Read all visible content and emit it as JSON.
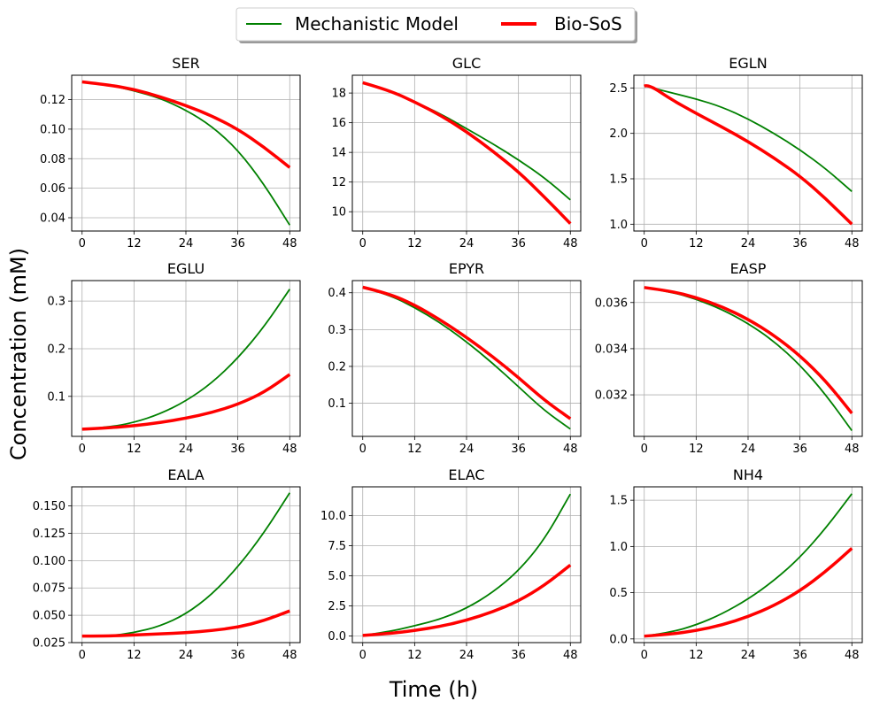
{
  "figure": {
    "xlabel": "Time (h)",
    "ylabel": "Concentration (mM)"
  },
  "legend": {
    "placement": "top-center",
    "entries": [
      {
        "name": "Mechanistic Model",
        "color": "#008000"
      },
      {
        "name": "Bio-SoS",
        "color": "#ff0000"
      }
    ]
  },
  "chart_data": [
    {
      "type": "line",
      "title": "SER",
      "x_ticks": [
        0,
        12,
        24,
        36,
        48
      ],
      "xlim": [
        -2.4,
        50.4
      ],
      "ylim": [
        0.031,
        0.1365
      ],
      "y_ticks": [
        0.04,
        0.06,
        0.08,
        0.1,
        0.12
      ],
      "y_decimals": 2,
      "grid": true,
      "series": [
        {
          "name": "Mechanistic Model",
          "x": [
            0,
            6,
            12,
            18,
            24,
            30,
            36,
            42,
            48
          ],
          "y": [
            0.132,
            0.13,
            0.126,
            0.121,
            0.113,
            0.102,
            0.086,
            0.063,
            0.035
          ]
        },
        {
          "name": "Bio-SoS",
          "x": [
            0,
            6,
            12,
            18,
            24,
            30,
            36,
            42,
            48
          ],
          "y": [
            0.132,
            0.13,
            0.127,
            0.122,
            0.116,
            0.109,
            0.1,
            0.088,
            0.074
          ]
        }
      ]
    },
    {
      "type": "line",
      "title": "GLC",
      "x_ticks": [
        0,
        12,
        24,
        36,
        48
      ],
      "xlim": [
        -2.4,
        50.4
      ],
      "ylim": [
        8.7,
        19.2
      ],
      "y_ticks": [
        10,
        12,
        14,
        16,
        18
      ],
      "y_decimals": 0,
      "grid": true,
      "series": [
        {
          "name": "Mechanistic Model",
          "x": [
            0,
            6,
            12,
            18,
            24,
            30,
            36,
            42,
            48
          ],
          "y": [
            18.7,
            18.2,
            17.4,
            16.6,
            15.6,
            14.6,
            13.5,
            12.3,
            10.8
          ]
        },
        {
          "name": "Bio-SoS",
          "x": [
            0,
            6,
            12,
            18,
            24,
            30,
            36,
            42,
            48
          ],
          "y": [
            18.7,
            18.2,
            17.4,
            16.5,
            15.4,
            14.1,
            12.7,
            11.0,
            9.2
          ]
        }
      ]
    },
    {
      "type": "line",
      "title": "EGLN",
      "x_ticks": [
        0,
        12,
        24,
        36,
        48
      ],
      "xlim": [
        -2.4,
        50.4
      ],
      "ylim": [
        0.925,
        2.64
      ],
      "y_ticks": [
        1.0,
        1.5,
        2.0,
        2.5
      ],
      "y_decimals": 1,
      "grid": true,
      "series": [
        {
          "name": "Mechanistic Model",
          "x": [
            0,
            1,
            6,
            12,
            18,
            24,
            30,
            36,
            42,
            48
          ],
          "y": [
            2.53,
            2.51,
            2.45,
            2.38,
            2.29,
            2.16,
            2.0,
            1.82,
            1.61,
            1.36
          ]
        },
        {
          "name": "Bio-SoS",
          "x": [
            0,
            1,
            6,
            12,
            18,
            24,
            30,
            36,
            42,
            48
          ],
          "y": [
            2.52,
            2.54,
            2.38,
            2.22,
            2.07,
            1.91,
            1.73,
            1.53,
            1.28,
            1.0
          ]
        }
      ]
    },
    {
      "type": "line",
      "title": "EGLU",
      "x_ticks": [
        0,
        12,
        24,
        36,
        48
      ],
      "xlim": [
        -2.4,
        50.4
      ],
      "ylim": [
        0.016,
        0.343
      ],
      "y_ticks": [
        0.1,
        0.2,
        0.3
      ],
      "y_decimals": 1,
      "grid": true,
      "series": [
        {
          "name": "Mechanistic Model",
          "x": [
            0,
            6,
            12,
            18,
            24,
            30,
            36,
            42,
            48
          ],
          "y": [
            0.031,
            0.035,
            0.045,
            0.063,
            0.09,
            0.128,
            0.18,
            0.245,
            0.325
          ]
        },
        {
          "name": "Bio-SoS",
          "x": [
            0,
            6,
            12,
            18,
            24,
            30,
            36,
            42,
            48
          ],
          "y": [
            0.031,
            0.034,
            0.038,
            0.045,
            0.054,
            0.066,
            0.083,
            0.108,
            0.146
          ]
        }
      ]
    },
    {
      "type": "line",
      "title": "EPYR",
      "x_ticks": [
        0,
        12,
        24,
        36,
        48
      ],
      "xlim": [
        -2.4,
        50.4
      ],
      "ylim": [
        0.01,
        0.433
      ],
      "y_ticks": [
        0.1,
        0.2,
        0.3,
        0.4
      ],
      "y_decimals": 1,
      "grid": true,
      "series": [
        {
          "name": "Mechanistic Model",
          "x": [
            0,
            6,
            12,
            18,
            24,
            30,
            36,
            42,
            48
          ],
          "y": [
            0.415,
            0.395,
            0.36,
            0.318,
            0.267,
            0.209,
            0.145,
            0.08,
            0.03
          ]
        },
        {
          "name": "Bio-SoS",
          "x": [
            0,
            6,
            12,
            18,
            24,
            30,
            36,
            42,
            48
          ],
          "y": [
            0.415,
            0.398,
            0.367,
            0.326,
            0.279,
            0.227,
            0.17,
            0.108,
            0.058
          ]
        }
      ]
    },
    {
      "type": "line",
      "title": "EASP",
      "x_ticks": [
        0,
        12,
        24,
        36,
        48
      ],
      "xlim": [
        -2.4,
        50.4
      ],
      "ylim": [
        0.0302,
        0.03695
      ],
      "y_ticks": [
        0.032,
        0.034,
        0.036
      ],
      "y_decimals": 3,
      "grid": true,
      "series": [
        {
          "name": "Mechanistic Model",
          "x": [
            0,
            6,
            12,
            18,
            24,
            30,
            36,
            42,
            48
          ],
          "y": [
            0.03665,
            0.03647,
            0.03615,
            0.0357,
            0.0351,
            0.03432,
            0.0333,
            0.032,
            0.03045
          ]
        },
        {
          "name": "Bio-SoS",
          "x": [
            0,
            6,
            12,
            18,
            24,
            30,
            36,
            42,
            48
          ],
          "y": [
            0.03665,
            0.0365,
            0.03622,
            0.03582,
            0.03528,
            0.03458,
            0.0337,
            0.0326,
            0.0312
          ]
        }
      ]
    },
    {
      "type": "line",
      "title": "EALA",
      "x_ticks": [
        0,
        12,
        24,
        36,
        48
      ],
      "xlim": [
        -2.4,
        50.4
      ],
      "ylim": [
        0.025,
        0.1675
      ],
      "y_ticks": [
        0.025,
        0.05,
        0.075,
        0.1,
        0.125,
        0.15
      ],
      "y_decimals": 3,
      "grid": true,
      "series": [
        {
          "name": "Mechanistic Model",
          "x": [
            0,
            6,
            12,
            18,
            24,
            30,
            36,
            42,
            48
          ],
          "y": [
            0.031,
            0.031,
            0.034,
            0.04,
            0.051,
            0.069,
            0.094,
            0.125,
            0.162
          ]
        },
        {
          "name": "Bio-SoS",
          "x": [
            0,
            6,
            12,
            18,
            24,
            30,
            36,
            42,
            48
          ],
          "y": [
            0.031,
            0.031,
            0.032,
            0.033,
            0.034,
            0.036,
            0.039,
            0.045,
            0.054
          ]
        }
      ]
    },
    {
      "type": "line",
      "title": "ELAC",
      "x_ticks": [
        0,
        12,
        24,
        36,
        48
      ],
      "xlim": [
        -2.4,
        50.4
      ],
      "ylim": [
        -0.55,
        12.4
      ],
      "y_ticks": [
        0.0,
        2.5,
        5.0,
        7.5,
        10.0
      ],
      "y_decimals": 1,
      "grid": true,
      "series": [
        {
          "name": "Mechanistic Model",
          "x": [
            0,
            6,
            12,
            18,
            24,
            30,
            36,
            42,
            48
          ],
          "y": [
            0.05,
            0.35,
            0.85,
            1.4,
            2.3,
            3.6,
            5.4,
            8.0,
            11.8
          ]
        },
        {
          "name": "Bio-SoS",
          "x": [
            0,
            6,
            12,
            18,
            24,
            30,
            36,
            42,
            48
          ],
          "y": [
            0.05,
            0.2,
            0.45,
            0.8,
            1.3,
            2.0,
            2.9,
            4.2,
            5.9
          ]
        }
      ]
    },
    {
      "type": "line",
      "title": "NH4",
      "x_ticks": [
        0,
        12,
        24,
        36,
        48
      ],
      "xlim": [
        -2.4,
        50.4
      ],
      "ylim": [
        -0.04,
        1.645
      ],
      "y_ticks": [
        0.0,
        0.5,
        1.0,
        1.5
      ],
      "y_decimals": 1,
      "grid": true,
      "series": [
        {
          "name": "Mechanistic Model",
          "x": [
            0,
            6,
            12,
            18,
            24,
            30,
            36,
            42,
            48
          ],
          "y": [
            0.03,
            0.07,
            0.15,
            0.27,
            0.43,
            0.63,
            0.88,
            1.2,
            1.57
          ]
        },
        {
          "name": "Bio-SoS",
          "x": [
            0,
            6,
            12,
            18,
            24,
            30,
            36,
            42,
            48
          ],
          "y": [
            0.03,
            0.05,
            0.09,
            0.15,
            0.24,
            0.36,
            0.52,
            0.73,
            0.98
          ]
        }
      ]
    }
  ]
}
